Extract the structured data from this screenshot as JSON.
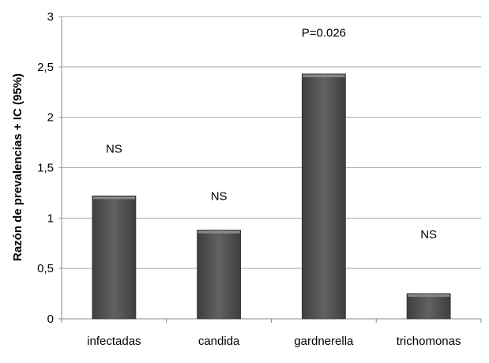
{
  "chart_data": {
    "type": "bar",
    "title": "",
    "xlabel": "",
    "ylabel": "Razón de prevalencias + IC (95%)",
    "categories": [
      "infectadas",
      "candida",
      "gardnerella",
      "trichomonas"
    ],
    "values": [
      1.22,
      0.88,
      2.43,
      0.25
    ],
    "annotations": [
      "NS",
      "NS",
      "P=0.026",
      "NS"
    ],
    "annotation_values": [
      1.65,
      1.18,
      2.8,
      0.8
    ],
    "ylim": [
      0,
      3
    ],
    "yticks": [
      0,
      0.5,
      1,
      1.5,
      2,
      2.5,
      3
    ],
    "ytick_labels": [
      "0",
      "0,5",
      "1",
      "1,5",
      "2",
      "2,5",
      "3"
    ],
    "grid": true,
    "bar_color": "#555555"
  }
}
